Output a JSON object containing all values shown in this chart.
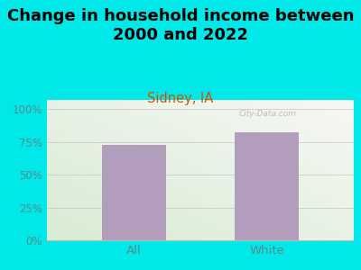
{
  "title": "Change in household income between\n2000 and 2022",
  "subtitle": "Sidney, IA",
  "categories": [
    "All",
    "White"
  ],
  "values": [
    73,
    82
  ],
  "bar_color": "#b39dbd",
  "figure_bg_color": "#00e8e8",
  "title_fontsize": 13,
  "subtitle_fontsize": 10.5,
  "subtitle_color": "#cc5500",
  "tick_label_color": "#5a8a8a",
  "yticks": [
    0,
    25,
    50,
    75,
    100
  ],
  "ylim": [
    0,
    107
  ],
  "watermark": "City-Data.com",
  "bar_width": 0.48,
  "grid_color": "#cccccc",
  "plot_bg_left": "#d8ecd4",
  "plot_bg_right": "#f0f4ee"
}
